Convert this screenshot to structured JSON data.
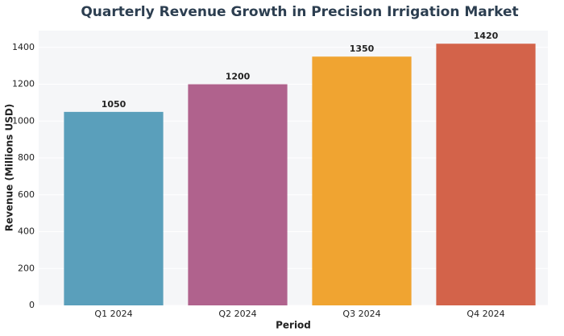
{
  "chart_data": {
    "type": "bar",
    "title": "Quarterly Revenue Growth in Precision Irrigation Market",
    "x_label": "Period",
    "y_label": "Revenue (Millions USD)",
    "categories": [
      "Q1 2024",
      "Q2 2024",
      "Q3 2024",
      "Q4 2024"
    ],
    "values": [
      1050,
      1200,
      1350,
      1420
    ],
    "colors": [
      "#5a9fbb",
      "#b0628d",
      "#f0a431",
      "#d3634a"
    ],
    "ylim": [
      0,
      1491
    ],
    "yticks": [
      0,
      200,
      400,
      600,
      800,
      1000,
      1200,
      1400
    ],
    "grid": true
  }
}
